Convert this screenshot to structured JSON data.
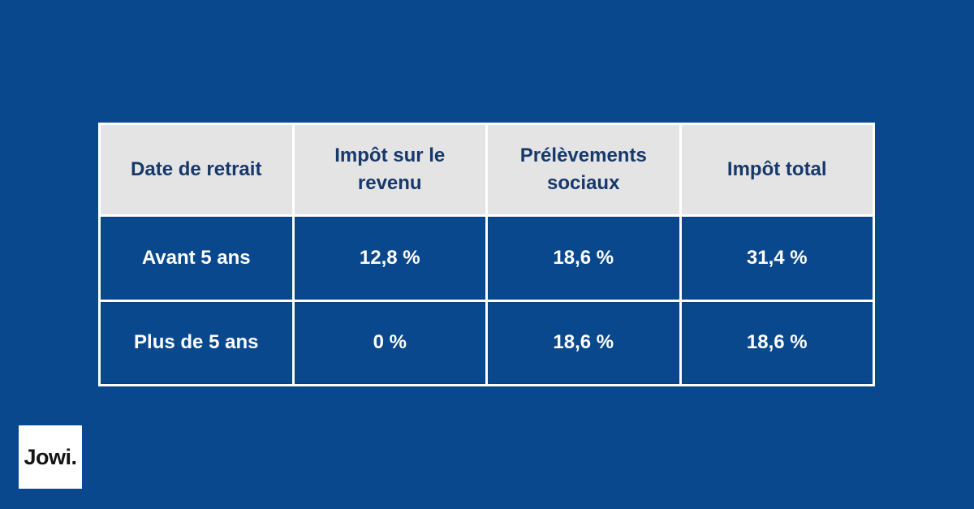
{
  "brand": {
    "logo_text": "Jowi."
  },
  "colors": {
    "background_blue": "#0a488e",
    "header_gray": "#e4e4e4",
    "header_text_navy": "#16386b",
    "data_text_white": "#ffffff",
    "grid_line_white": "#ffffff",
    "logo_text_black": "#141414"
  },
  "table": {
    "headers": [
      "Date de retrait",
      "Impôt sur le revenu",
      "Prélèvements sociaux",
      "Impôt total"
    ],
    "rows": [
      {
        "cells": [
          "Avant 5 ans",
          "12,8 %",
          "18,6 %",
          "31,4 %"
        ]
      },
      {
        "cells": [
          "Plus de 5 ans",
          "0 %",
          "18,6 %",
          "18,6 %"
        ]
      }
    ]
  },
  "chart_data": {
    "type": "table",
    "title": "",
    "columns": [
      "Date de retrait",
      "Impôt sur le revenu",
      "Prélèvements sociaux",
      "Impôt total"
    ],
    "rows": [
      [
        "Avant 5 ans",
        "12,8 %",
        "18,6 %",
        "31,4 %"
      ],
      [
        "Plus de 5 ans",
        "0 %",
        "18,6 %",
        "18,6 %"
      ]
    ],
    "layout_hints": {
      "header_background": "#e4e4e4",
      "body_background": "#0a488e",
      "grid": true
    }
  }
}
